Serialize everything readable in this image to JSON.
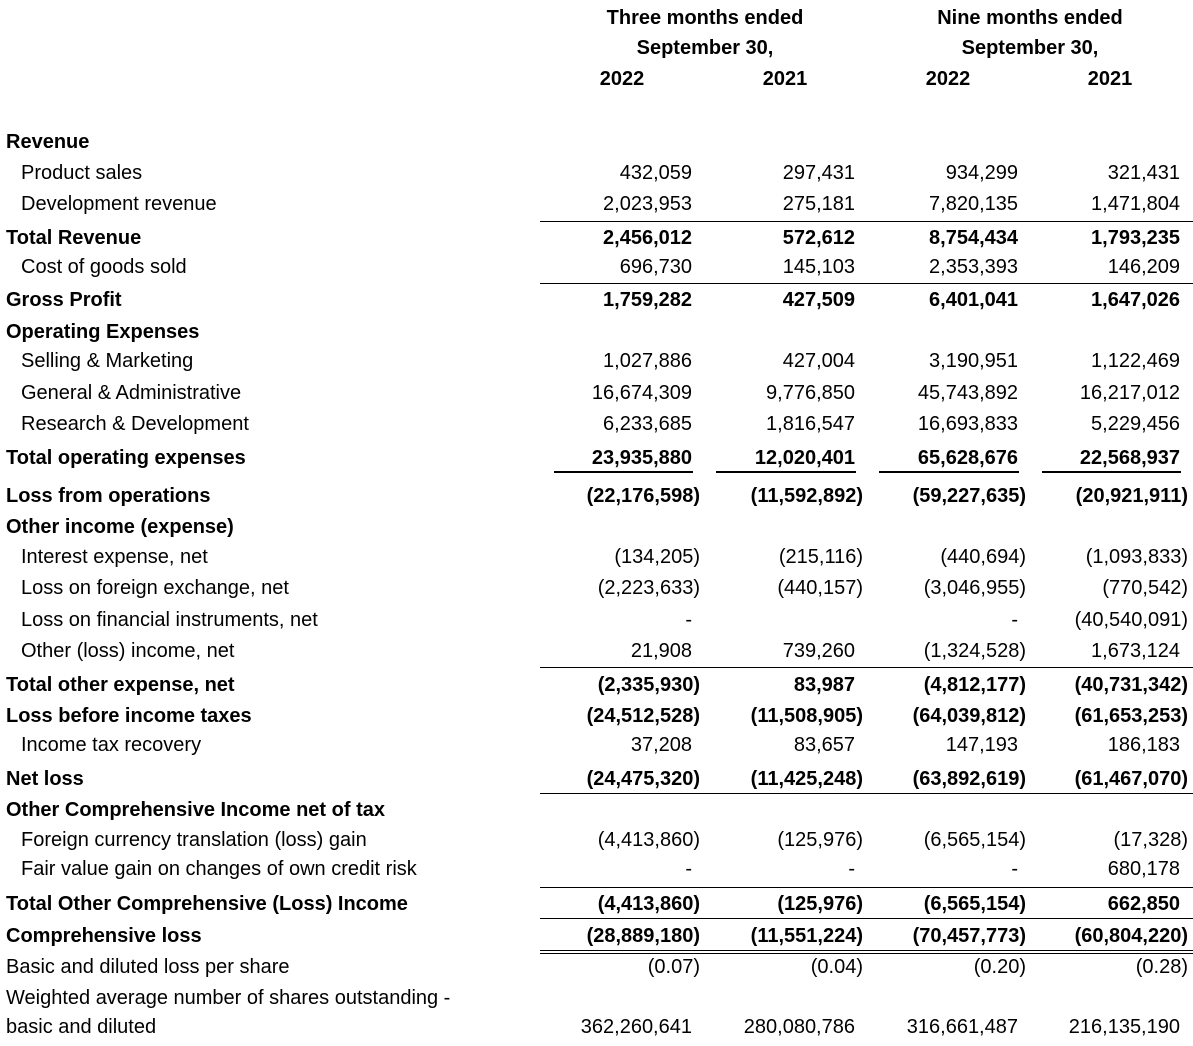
{
  "header": {
    "three_months": "Three months ended",
    "nine_months": "Nine months ended",
    "period_end_1": "September 30,",
    "period_end_2": "September 30,",
    "years": [
      "2022",
      "2021",
      "2022",
      "2021"
    ]
  },
  "rows": [
    {
      "label": "Revenue",
      "bold": true,
      "values": []
    },
    {
      "label": "Product sales",
      "indent": true,
      "values": [
        "432,059",
        "297,431",
        "934,299",
        "321,431"
      ]
    },
    {
      "label": "Development revenue",
      "indent": true,
      "values": [
        "2,023,953",
        "275,181",
        "7,820,135",
        "1,471,804"
      ]
    },
    {
      "label": "Total Revenue",
      "bold": true,
      "values": [
        "2,456,012",
        "572,612",
        "8,754,434",
        "1,793,235"
      ]
    },
    {
      "label": "Cost of goods sold",
      "indent": true,
      "values": [
        "696,730",
        "145,103",
        "2,353,393",
        "146,209"
      ]
    },
    {
      "label": "Gross Profit",
      "bold": true,
      "values": [
        "1,759,282",
        "427,509",
        "6,401,041",
        "1,647,026"
      ]
    },
    {
      "label": "Operating Expenses",
      "bold": true,
      "values": []
    },
    {
      "label": "Selling & Marketing",
      "indent": true,
      "values": [
        "1,027,886",
        "427,004",
        "3,190,951",
        "1,122,469"
      ]
    },
    {
      "label": "General & Administrative",
      "indent": true,
      "values": [
        "16,674,309",
        "9,776,850",
        "45,743,892",
        "16,217,012"
      ]
    },
    {
      "label": "Research & Development",
      "indent": true,
      "values": [
        "6,233,685",
        "1,816,547",
        "16,693,833",
        "5,229,456"
      ]
    },
    {
      "label": "Total operating expenses",
      "bold": true,
      "values": [
        "23,935,880",
        "12,020,401",
        "65,628,676",
        "22,568,937"
      ]
    },
    {
      "label": "Loss from operations",
      "bold": true,
      "values": [
        "(22,176,598)",
        "(11,592,892)",
        "(59,227,635)",
        "(20,921,911)"
      ]
    },
    {
      "label": "Other income (expense)",
      "bold": true,
      "values": []
    },
    {
      "label": "Interest expense, net",
      "indent": true,
      "values": [
        "(134,205)",
        "(215,116)",
        "(440,694)",
        "(1,093,833)"
      ]
    },
    {
      "label": "Loss on foreign exchange, net",
      "indent": true,
      "values": [
        "(2,223,633)",
        "(440,157)",
        "(3,046,955)",
        "(770,542)"
      ]
    },
    {
      "label": "Loss on financial instruments, net",
      "indent": true,
      "values": [
        "-",
        "",
        "-",
        "(40,540,091)"
      ]
    },
    {
      "label": "Other (loss) income, net",
      "indent": true,
      "values": [
        "21,908",
        "739,260",
        "(1,324,528)",
        "1,673,124"
      ]
    },
    {
      "label": "Total other expense, net",
      "bold": true,
      "values": [
        "(2,335,930)",
        "83,987",
        "(4,812,177)",
        "(40,731,342)"
      ]
    },
    {
      "label": "Loss before income taxes",
      "bold": true,
      "values": [
        "(24,512,528)",
        "(11,508,905)",
        "(64,039,812)",
        "(61,653,253)"
      ]
    },
    {
      "label": "Income tax recovery",
      "indent": true,
      "values": [
        "37,208",
        "83,657",
        "147,193",
        "186,183"
      ]
    },
    {
      "label": "Net loss",
      "bold": true,
      "values": [
        "(24,475,320)",
        "(11,425,248)",
        "(63,892,619)",
        "(61,467,070)"
      ]
    },
    {
      "label": "Other Comprehensive Income net of tax",
      "bold": true,
      "values": []
    },
    {
      "label": "Foreign currency translation (loss) gain",
      "indent": true,
      "values": [
        "(4,413,860)",
        "(125,976)",
        "(6,565,154)",
        "(17,328)"
      ]
    },
    {
      "label": "Fair value gain on changes of own credit risk",
      "indent": true,
      "values": [
        "-",
        "-",
        "-",
        "680,178"
      ]
    },
    {
      "label": "Total Other Comprehensive (Loss) Income",
      "bold": true,
      "values": [
        "(4,413,860)",
        "(125,976)",
        "(6,565,154)",
        "662,850"
      ]
    },
    {
      "label": "Comprehensive loss",
      "bold": true,
      "values": [
        "(28,889,180)",
        "(11,551,224)",
        "(70,457,773)",
        "(60,804,220)"
      ]
    },
    {
      "label": "Basic and diluted loss per share",
      "values": [
        "(0.07)",
        "(0.04)",
        "(0.20)",
        "(0.28)"
      ]
    },
    {
      "label": "Weighted average number of shares outstanding -",
      "values": []
    },
    {
      "label": "basic and diluted",
      "values": [
        "362,260,641",
        "280,080,786",
        "316,661,487",
        "216,135,190"
      ]
    }
  ]
}
